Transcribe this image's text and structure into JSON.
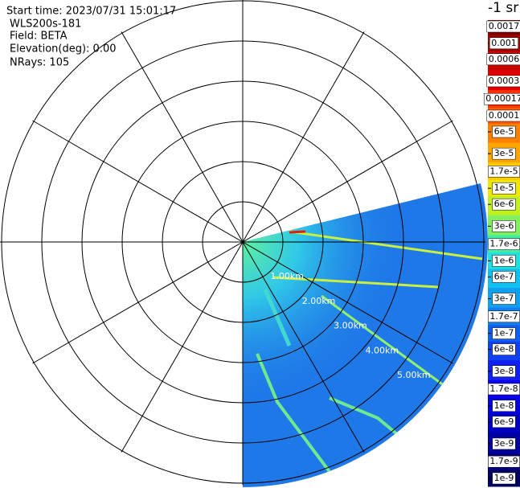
{
  "chart_data": {
    "type": "ppi",
    "info": [
      "Start time: 2023/07/31 15:01:17",
      "WLS200s-181",
      "Field: BETA",
      "Elevation(deg): 0.00",
      "NRays: 105"
    ],
    "range_labels": [
      "1.00km",
      "2.00km",
      "3.00km",
      "4.00km",
      "5.00km"
    ],
    "colorbar": {
      "title": "-1 sr",
      "log": true,
      "ticks": [
        0.0017,
        0.001,
        0.0006,
        0.0003,
        0.00017,
        0.0001,
        {
          "value": 6e-05,
          "label": "6e-5"
        },
        {
          "value": 3e-05,
          "label": "3e-5"
        },
        {
          "value": 1.7e-05,
          "label": "1.7e-5"
        },
        {
          "value": 1e-05,
          "label": "1e-5"
        },
        {
          "value": 6e-06,
          "label": "6e-6"
        },
        {
          "value": 3e-06,
          "label": "3e-6"
        },
        {
          "value": 1.7e-06,
          "label": "1.7e-6"
        },
        {
          "value": 1e-06,
          "label": "1e-6"
        },
        {
          "value": 6e-07,
          "label": "6e-7"
        },
        {
          "value": 3e-07,
          "label": "3e-7"
        },
        {
          "value": 1.7e-07,
          "label": "1.7e-7"
        },
        {
          "value": 1e-07,
          "label": "1e-7"
        },
        {
          "value": 6e-08,
          "label": "6e-8"
        },
        {
          "value": 3e-08,
          "label": "3e-8"
        },
        {
          "value": 1.7e-08,
          "label": "1.7e-8"
        },
        {
          "value": 1e-08,
          "label": "1e-8"
        },
        {
          "value": 6e-09,
          "label": "6e-9"
        },
        {
          "value": 3e-09,
          "label": "3e-9"
        },
        {
          "value": 1.7e-09,
          "label": "1.7e-9"
        },
        {
          "value": 1e-09,
          "label": "1e-9"
        }
      ],
      "colors": [
        "#7a0000",
        "#a00000",
        "#c80000",
        "#e00000",
        "#ff3000",
        "#ff5a00",
        "#ff8000",
        "#ffa500",
        "#ffc800",
        "#f0e800",
        "#c0f020",
        "#80f060",
        "#40f0a0",
        "#20e0e0",
        "#10c0f0",
        "#10a0f0",
        "#1080f0",
        "#1060f0",
        "#1040f0",
        "#1020f0",
        "#1000f0",
        "#0000e0",
        "#0000c0",
        "#0000a0",
        "#000080",
        "#000060"
      ]
    }
  }
}
